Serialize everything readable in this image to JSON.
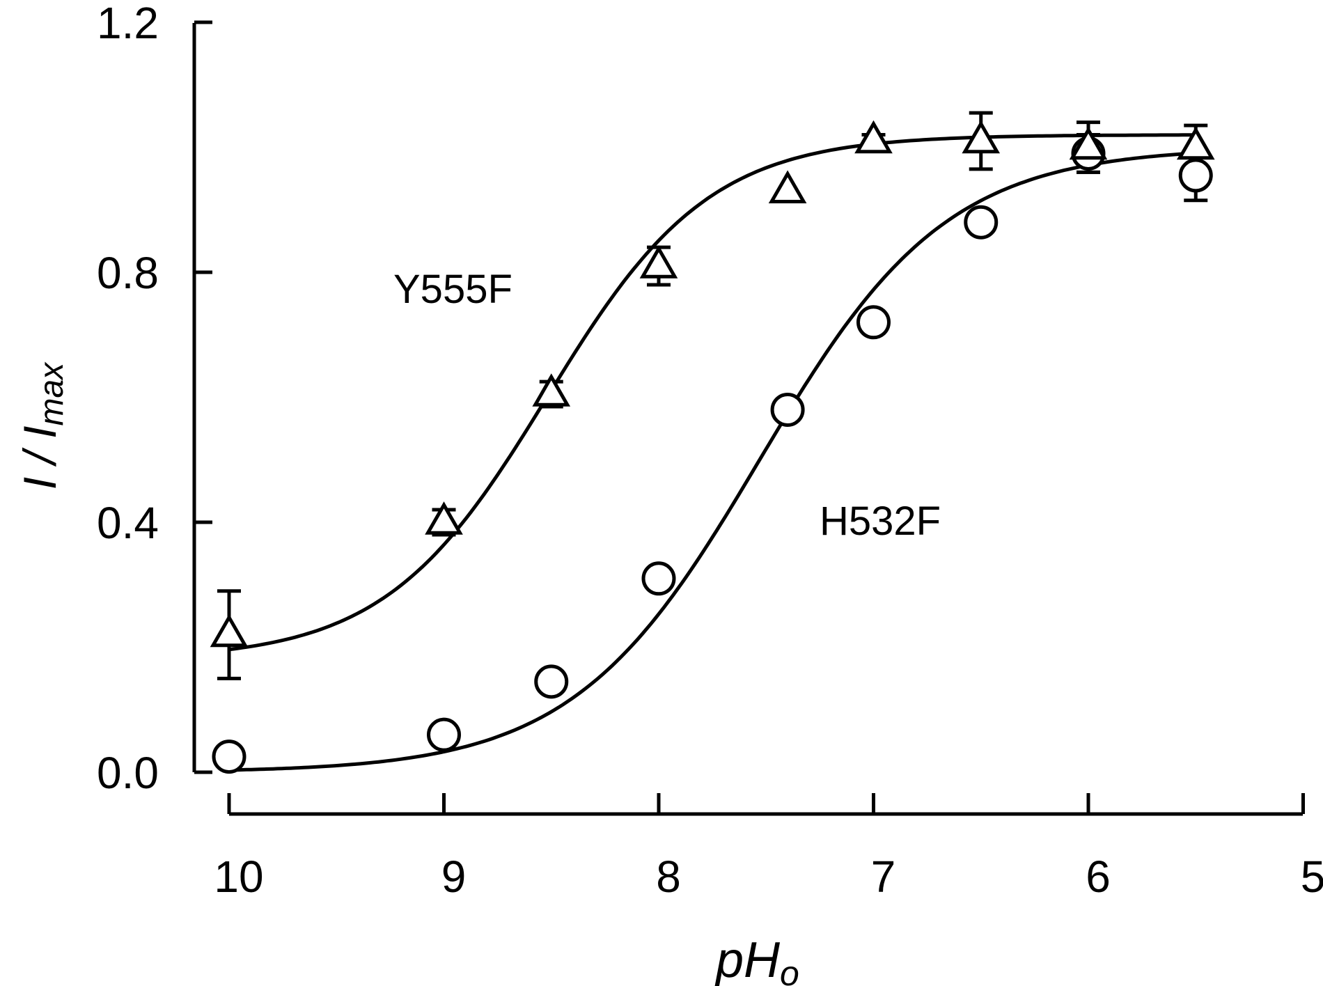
{
  "chart_data": {
    "type": "scatter",
    "xlabel": "pH",
    "xlabel_sub": "o",
    "ylabel": "I / I",
    "ylabel_sub": "max",
    "xlim": [
      10,
      5
    ],
    "ylim": [
      0,
      1.2
    ],
    "x_ticks": [
      10,
      9,
      8,
      7,
      6,
      5
    ],
    "x_tick_labels": [
      "10",
      "9",
      "8",
      "7",
      "6",
      "5"
    ],
    "y_ticks": [
      0,
      0.4,
      0.8,
      1.2
    ],
    "y_tick_labels": [
      "0.0",
      "0.4",
      "0.8",
      "1.2"
    ],
    "grid": false,
    "series": [
      {
        "name": "Y555F",
        "marker": "triangle",
        "x": [
          10,
          9,
          8.5,
          8,
          7.4,
          7,
          6.5,
          6,
          5.5
        ],
        "y": [
          0.22,
          0.4,
          0.605,
          0.81,
          0.93,
          1.01,
          1.01,
          1.0,
          1.0
        ],
        "err": [
          0.07,
          0.02,
          0.02,
          0.03,
          0.0,
          0.01,
          0.045,
          0.04,
          0.035
        ],
        "fit": {
          "bottom": 0.18,
          "top": 1.02,
          "pK": 8.52,
          "slope": 1.15
        }
      },
      {
        "name": "H532F",
        "marker": "circle",
        "x": [
          10,
          9,
          8.5,
          8,
          7.4,
          7,
          6.5,
          6,
          5.5
        ],
        "y": [
          0.025,
          0.06,
          0.145,
          0.31,
          0.58,
          0.72,
          0.88,
          0.99,
          0.955
        ],
        "err": [
          0.0,
          0.0,
          0.015,
          0.015,
          0.0,
          0.0,
          0.015,
          0.03,
          0.04
        ],
        "fit": {
          "bottom": 0.0,
          "top": 1.0,
          "pK": 7.53,
          "slope": 1.0
        }
      }
    ]
  }
}
